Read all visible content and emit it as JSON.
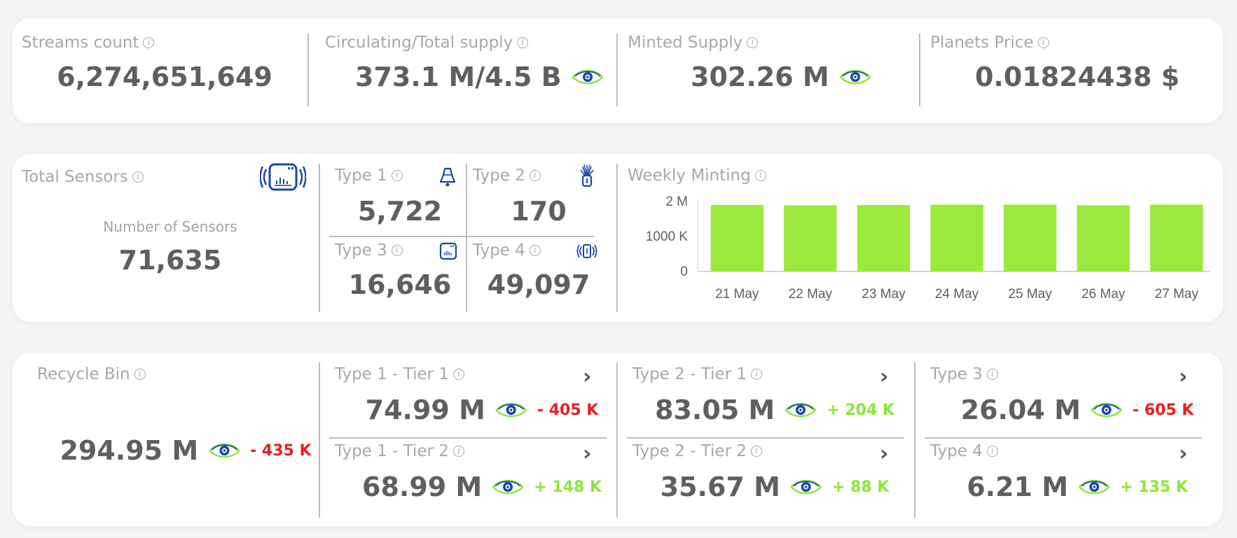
{
  "top": {
    "streams": {
      "label": "Streams count",
      "value": "6,274,651,649"
    },
    "supply": {
      "label": "Circulating/Total supply",
      "value": "373.1 M/4.5 B"
    },
    "minted": {
      "label": "Minted Supply",
      "value": "302.26 M"
    },
    "price": {
      "label": "Planets Price",
      "value": "0.01824438 $"
    }
  },
  "sensors": {
    "total_label": "Total Sensors",
    "number_label": "Number of Sensors",
    "number_value": "71,635",
    "types": [
      {
        "label": "Type 1",
        "value": "5,722",
        "icon": "bell-sensor-icon"
      },
      {
        "label": "Type 2",
        "value": "170",
        "icon": "antenna-sensor-icon"
      },
      {
        "label": "Type 3",
        "value": "16,646",
        "icon": "chart-box-icon"
      },
      {
        "label": "Type 4",
        "value": "49,097",
        "icon": "signal-device-icon"
      }
    ]
  },
  "weekly": {
    "label": "Weekly Minting"
  },
  "chart_data": {
    "type": "bar",
    "categories": [
      "21 May",
      "22 May",
      "23 May",
      "24 May",
      "25 May",
      "26 May",
      "27 May"
    ],
    "values": [
      1900000,
      1890000,
      1900000,
      1910000,
      1910000,
      1890000,
      1910000
    ],
    "ylim": [
      0,
      2000000
    ],
    "yticks": [
      {
        "v": 0,
        "label": "0"
      },
      {
        "v": 1000000,
        "label": "1000 K"
      },
      {
        "v": 2000000,
        "label": "2 M"
      }
    ],
    "bar_color": "#9be93c",
    "grid": false,
    "xlabel": "",
    "ylabel": ""
  },
  "bins": {
    "recycle": {
      "label": "Recycle Bin",
      "value": "294.95 M",
      "delta": "- 435 K"
    },
    "t1t1": {
      "label": "Type 1 - Tier 1",
      "value": "74.99 M",
      "delta": "- 405 K"
    },
    "t1t2": {
      "label": "Type 1 - Tier 2",
      "value": "68.99 M",
      "delta": "+ 148 K"
    },
    "t2t1": {
      "label": "Type 2 - Tier 1",
      "value": "83.05 M",
      "delta": "+ 204 K"
    },
    "t2t2": {
      "label": "Type 2 - Tier 2",
      "value": "35.67 M",
      "delta": "+ 88 K"
    },
    "t3": {
      "label": "Type 3",
      "value": "26.04 M",
      "delta": "- 605 K"
    },
    "t4": {
      "label": "Type 4",
      "value": "6.21 M",
      "delta": "+ 135 K"
    }
  },
  "colors": {
    "negative": "#f01c1c",
    "positive": "#8de63a",
    "accent_blue": "#1747a6",
    "bar": "#9be93c"
  },
  "icons": {
    "info": "i",
    "eye": "eye-icon",
    "chevron": "›"
  }
}
